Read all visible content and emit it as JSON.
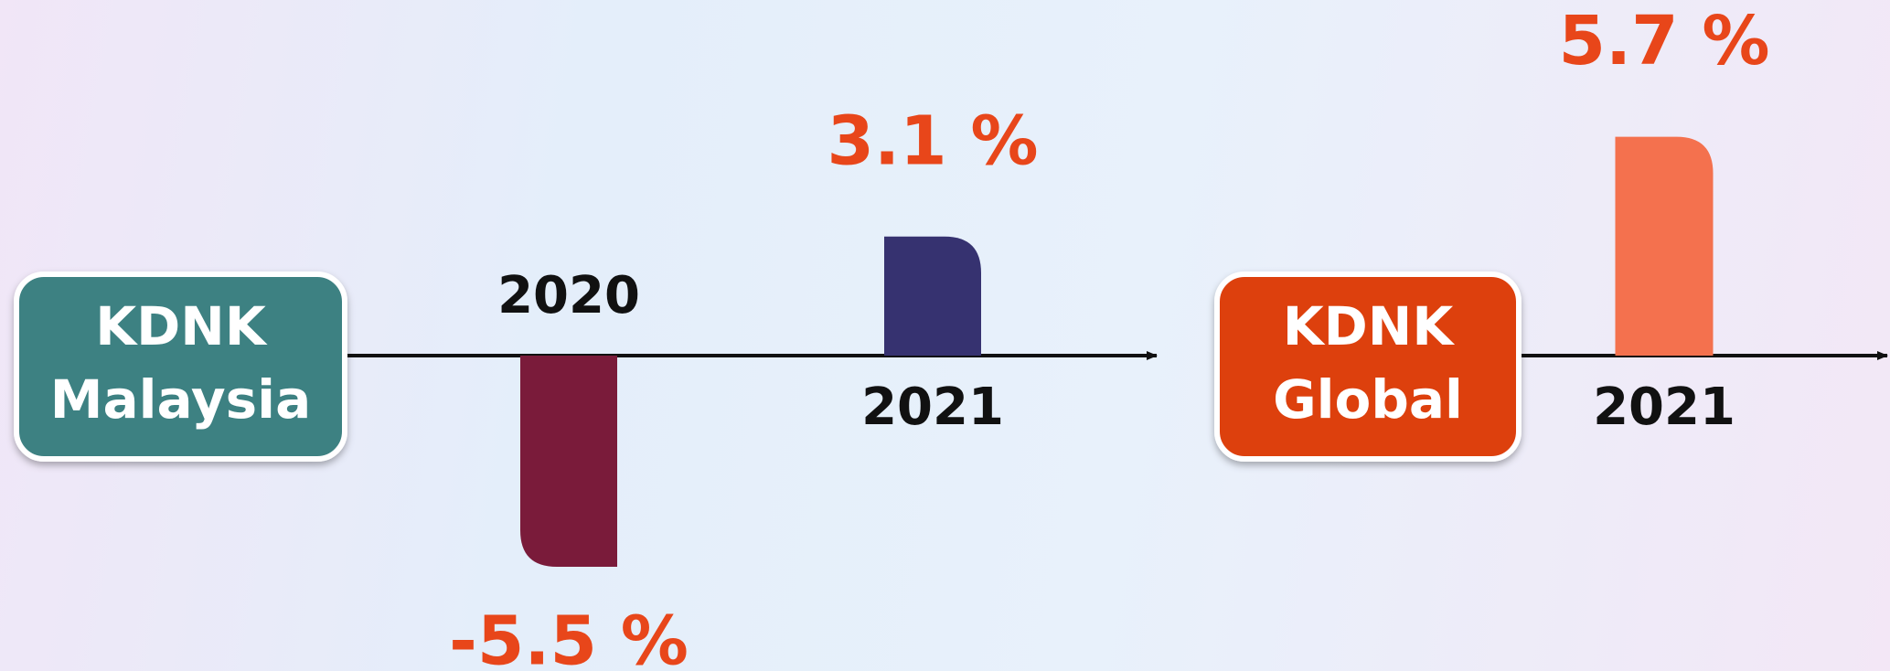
{
  "chart_data": [
    {
      "type": "bar",
      "title": [
        "KDNK",
        "Malaysia"
      ],
      "box_color": "#3d8182",
      "categories": [
        "2020",
        "2021"
      ],
      "values": [
        -5.5,
        3.1
      ],
      "value_labels": [
        "-5.5 %",
        "3.1 %"
      ],
      "colors": [
        "#7a1b3a",
        "#363270"
      ]
    },
    {
      "type": "bar",
      "title": [
        "KDNK",
        "Global"
      ],
      "box_color": "#dd3f10",
      "categories": [
        "2021"
      ],
      "values": [
        5.7
      ],
      "value_labels": [
        "5.7 %"
      ],
      "colors": [
        "#f4714e"
      ]
    }
  ]
}
